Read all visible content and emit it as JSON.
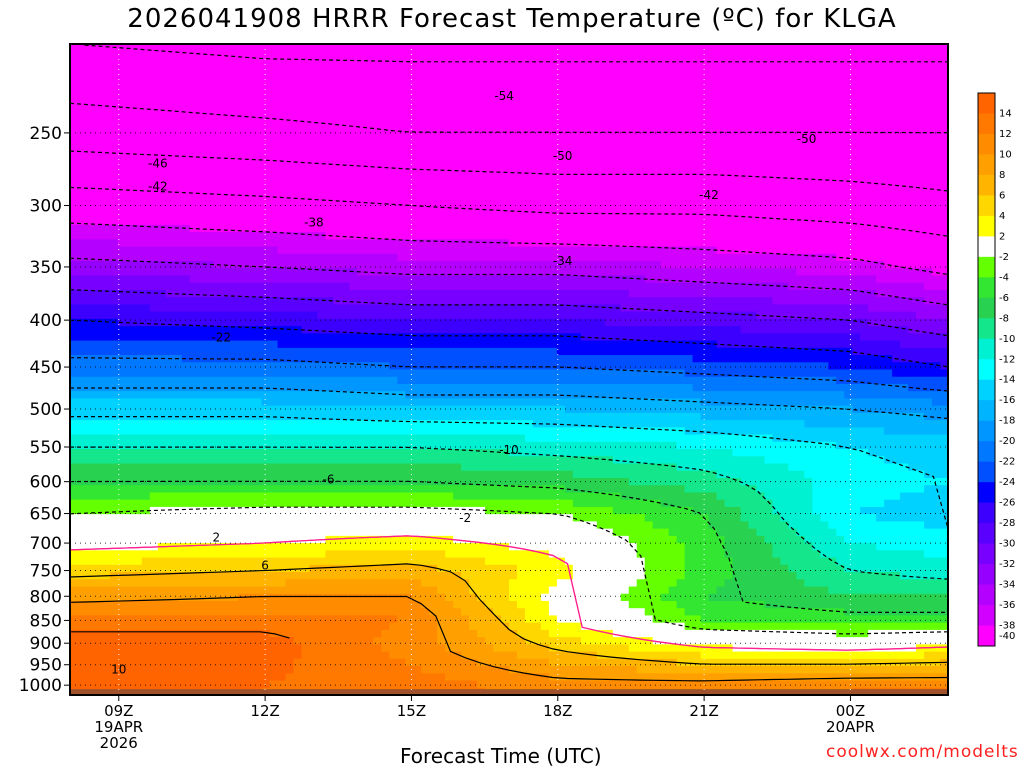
{
  "chart_data": {
    "type": "contour",
    "title": "2026041908 HRRR Forecast Temperature (ºC) for KLGA",
    "xlabel": "Forecast Time (UTC)",
    "ylabel": "",
    "credit": "coolwx.com/modelts",
    "x_ticks": [
      {
        "hour": 9,
        "label": "09Z",
        "date": "19APR",
        "year": "2026"
      },
      {
        "hour": 12,
        "label": "12Z",
        "date": "",
        "year": ""
      },
      {
        "hour": 15,
        "label": "15Z",
        "date": "",
        "year": ""
      },
      {
        "hour": 18,
        "label": "18Z",
        "date": "",
        "year": ""
      },
      {
        "hour": 21,
        "label": "21Z",
        "date": "",
        "year": ""
      },
      {
        "hour": 24,
        "label": "00Z",
        "date": "20APR",
        "year": ""
      }
    ],
    "xlim": [
      8.0,
      26.0
    ],
    "y_scale": "log-pressure (hPa), inverted",
    "ylim": [
      1025,
      200
    ],
    "y_ticks": [
      250,
      300,
      350,
      400,
      450,
      500,
      550,
      600,
      650,
      700,
      750,
      800,
      850,
      900,
      950,
      1000
    ],
    "colorbar": {
      "labels": [
        14,
        12,
        10,
        8,
        6,
        4,
        2,
        -2,
        -4,
        -6,
        -8,
        -10,
        -12,
        -14,
        -16,
        -18,
        -20,
        -22,
        -24,
        -26,
        -28,
        -30,
        -32,
        -34,
        -36,
        -38,
        -40
      ],
      "colors": [
        "#ff6400",
        "#ff7800",
        "#ff8c00",
        "#ffa000",
        "#ffb400",
        "#ffd700",
        "#ffff00",
        "#ffffff",
        "#64ff00",
        "#32e632",
        "#28d250",
        "#14e68c",
        "#00f0d2",
        "#00ffff",
        "#00d2ff",
        "#00b4ff",
        "#0096ff",
        "#0078ff",
        "#0050ff",
        "#0000ff",
        "#3c00ff",
        "#5a00ff",
        "#7800ff",
        "#9600ff",
        "#b400ff",
        "#d200ff",
        "#ff00ff"
      ]
    },
    "temperature_profiles": [
      {
        "hour": 8,
        "levels": [
          [
            1000,
            14
          ],
          [
            900,
            15
          ],
          [
            850,
            13
          ],
          [
            800,
            9
          ],
          [
            750,
            5
          ],
          [
            700,
            1
          ],
          [
            650,
            -2
          ],
          [
            600,
            -6
          ],
          [
            550,
            -10
          ],
          [
            500,
            -15
          ],
          [
            450,
            -21
          ],
          [
            400,
            -26
          ],
          [
            350,
            -33
          ],
          [
            300,
            -40
          ],
          [
            250,
            -48
          ],
          [
            200,
            -54
          ]
        ]
      },
      {
        "hour": 12,
        "levels": [
          [
            1000,
            14
          ],
          [
            900,
            15
          ],
          [
            850,
            13
          ],
          [
            800,
            10
          ],
          [
            750,
            6
          ],
          [
            700,
            2
          ],
          [
            650,
            -1
          ],
          [
            600,
            -6
          ],
          [
            550,
            -10
          ],
          [
            500,
            -15
          ],
          [
            450,
            -21
          ],
          [
            400,
            -27
          ],
          [
            350,
            -34
          ],
          [
            300,
            -41
          ],
          [
            250,
            -49
          ],
          [
            200,
            -55
          ]
        ]
      },
      {
        "hour": 15,
        "levels": [
          [
            1000,
            13
          ],
          [
            900,
            11
          ],
          [
            850,
            12
          ],
          [
            800,
            10
          ],
          [
            750,
            7
          ],
          [
            700,
            3
          ],
          [
            650,
            -1
          ],
          [
            600,
            -6
          ],
          [
            550,
            -10
          ],
          [
            500,
            -16
          ],
          [
            450,
            -22
          ],
          [
            400,
            -28
          ],
          [
            350,
            -35
          ],
          [
            300,
            -42
          ],
          [
            250,
            -50
          ],
          [
            200,
            -55
          ]
        ]
      },
      {
        "hour": 18,
        "levels": [
          [
            1000,
            11
          ],
          [
            900,
            5
          ],
          [
            850,
            2
          ],
          [
            800,
            1
          ],
          [
            750,
            3
          ],
          [
            700,
            1
          ],
          [
            650,
            -2
          ],
          [
            600,
            -7
          ],
          [
            550,
            -11
          ],
          [
            500,
            -16
          ],
          [
            450,
            -22
          ],
          [
            400,
            -28
          ],
          [
            350,
            -35
          ],
          [
            300,
            -43
          ],
          [
            250,
            -50
          ],
          [
            200,
            -55
          ]
        ]
      },
      {
        "hour": 21,
        "levels": [
          [
            1000,
            11
          ],
          [
            900,
            1
          ],
          [
            850,
            -4
          ],
          [
            800,
            -6
          ],
          [
            750,
            -5
          ],
          [
            700,
            -5
          ],
          [
            650,
            -6
          ],
          [
            600,
            -9
          ],
          [
            550,
            -12
          ],
          [
            500,
            -17
          ],
          [
            450,
            -23
          ],
          [
            400,
            -29
          ],
          [
            350,
            -36
          ],
          [
            300,
            -43
          ],
          [
            250,
            -50
          ],
          [
            200,
            -55
          ]
        ]
      },
      {
        "hour": 24,
        "levels": [
          [
            1000,
            12
          ],
          [
            900,
            0
          ],
          [
            850,
            -5
          ],
          [
            800,
            -8
          ],
          [
            750,
            -10
          ],
          [
            700,
            -12
          ],
          [
            650,
            -14
          ],
          [
            600,
            -13
          ],
          [
            550,
            -14
          ],
          [
            500,
            -18
          ],
          [
            450,
            -24
          ],
          [
            400,
            -30
          ],
          [
            350,
            -37
          ],
          [
            300,
            -44
          ],
          [
            250,
            -50
          ],
          [
            200,
            -55
          ]
        ]
      },
      {
        "hour": 26,
        "levels": [
          [
            1000,
            12
          ],
          [
            900,
            1
          ],
          [
            850,
            -5
          ],
          [
            800,
            -8
          ],
          [
            750,
            -11
          ],
          [
            700,
            -13
          ],
          [
            650,
            -15
          ],
          [
            600,
            -14
          ],
          [
            550,
            -15
          ],
          [
            500,
            -19
          ],
          [
            450,
            -26
          ],
          [
            400,
            -32
          ],
          [
            350,
            -39
          ],
          [
            300,
            -45
          ],
          [
            250,
            -50
          ],
          [
            200,
            -55
          ]
        ]
      }
    ],
    "contour_labels": [
      {
        "text": "-54",
        "hour": 16.9,
        "p": 228
      },
      {
        "text": "-50",
        "hour": 18.1,
        "p": 265
      },
      {
        "text": "-50",
        "hour": 23.1,
        "p": 254
      },
      {
        "text": "-46",
        "hour": 9.8,
        "p": 270
      },
      {
        "text": "-42",
        "hour": 9.8,
        "p": 286
      },
      {
        "text": "-42",
        "hour": 21.1,
        "p": 292
      },
      {
        "text": "-38",
        "hour": 13.0,
        "p": 313
      },
      {
        "text": "-34",
        "hour": 18.1,
        "p": 345
      },
      {
        "text": "-22",
        "hour": 11.1,
        "p": 418
      },
      {
        "text": "-10",
        "hour": 17.0,
        "p": 554
      },
      {
        "text": "-6",
        "hour": 13.3,
        "p": 597
      },
      {
        "text": "-2",
        "hour": 16.1,
        "p": 657
      },
      {
        "text": "2",
        "hour": 11.0,
        "p": 690
      },
      {
        "text": "6",
        "hour": 12.0,
        "p": 741
      },
      {
        "text": "10",
        "hour": 9.0,
        "p": 962
      }
    ]
  }
}
